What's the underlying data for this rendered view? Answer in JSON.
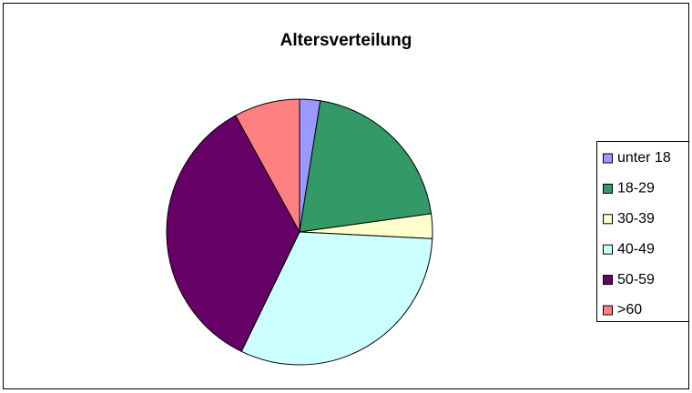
{
  "chart_data": {
    "type": "pie",
    "title": "Altersverteilung",
    "categories": [
      "unter 18",
      "18-29",
      "30-39",
      "40-49",
      "50-59",
      ">60"
    ],
    "values": [
      2.5,
      20.3,
      3.0,
      31.4,
      34.8,
      8.0
    ],
    "colors": [
      "#9999ff",
      "#339966",
      "#ffffcc",
      "#ccffff",
      "#660066",
      "#ff8080"
    ],
    "legend": "right"
  }
}
